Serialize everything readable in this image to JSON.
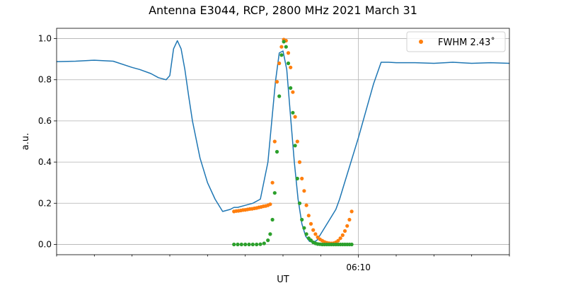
{
  "chart_data": {
    "type": "line",
    "title": "Antenna E3044, RCP, 2800 MHz 2021 March 31",
    "xlabel": "UT",
    "ylabel": "a.u.",
    "xlim": [
      0,
      120
    ],
    "ylim": [
      -0.05,
      1.05
    ],
    "x_tick_positions": [
      0,
      10,
      20,
      30,
      40,
      50,
      60,
      70,
      80,
      90,
      100,
      110,
      120
    ],
    "x_tick_labels": [
      {
        "x": 80,
        "label": "06:10"
      }
    ],
    "y_ticks": [
      0.0,
      0.2,
      0.4,
      0.6,
      0.8,
      1.0
    ],
    "y_tick_labels": [
      "0.0",
      "0.2",
      "0.4",
      "0.6",
      "0.8",
      "1.0"
    ],
    "grid": true,
    "grid_x": [
      80
    ],
    "legend": {
      "placement": "top-right",
      "entries": [
        {
          "label": "FWHM 2.43$^\\circ$",
          "display": "FWHM 2.43˚",
          "color": "#ff7f0e",
          "marker": "dot"
        }
      ]
    },
    "series": [
      {
        "kind": "line",
        "color": "#1f77b4",
        "x": [
          0,
          5,
          10,
          15,
          20,
          22,
          25,
          27,
          29,
          30,
          31,
          32,
          33,
          34,
          35,
          36,
          38,
          40,
          42,
          44,
          46,
          47,
          48,
          50,
          52,
          54,
          56,
          58,
          59,
          60,
          61,
          62,
          63,
          64,
          65,
          66,
          67,
          68,
          69,
          70,
          72,
          74,
          75,
          76,
          78,
          80,
          82,
          84,
          86,
          88,
          90,
          95,
          100,
          105,
          110,
          115,
          120
        ],
        "y": [
          0.888,
          0.89,
          0.895,
          0.89,
          0.86,
          0.85,
          0.83,
          0.81,
          0.8,
          0.82,
          0.95,
          0.99,
          0.95,
          0.85,
          0.72,
          0.6,
          0.42,
          0.3,
          0.22,
          0.16,
          0.17,
          0.18,
          0.18,
          0.19,
          0.2,
          0.22,
          0.4,
          0.79,
          0.93,
          0.94,
          0.85,
          0.62,
          0.4,
          0.22,
          0.1,
          0.04,
          0.015,
          0.01,
          0.02,
          0.05,
          0.11,
          0.17,
          0.22,
          0.28,
          0.4,
          0.52,
          0.65,
          0.78,
          0.885,
          0.885,
          0.883,
          0.883,
          0.88,
          0.885,
          0.88,
          0.883,
          0.88
        ]
      },
      {
        "kind": "scatter",
        "color": "#ff7f0e",
        "x": [
          47,
          47.6,
          48.2,
          48.8,
          49.4,
          50,
          50.6,
          51.2,
          51.8,
          52.4,
          53,
          53.6,
          54.2,
          54.8,
          55.4,
          56,
          56.6,
          57.2,
          57.8,
          58.4,
          59,
          59.6,
          60.2,
          60.8,
          61.4,
          62,
          62.6,
          63.2,
          63.8,
          64.4,
          65,
          65.6,
          66.2,
          66.8,
          67.4,
          68,
          68.6,
          69.2,
          69.8,
          70.4,
          71,
          71.6,
          72.2,
          72.8,
          73.4,
          74,
          74.6,
          75.2,
          75.8,
          76.4,
          77,
          77.6,
          78.2
        ],
        "y": [
          0.16,
          0.162,
          0.163,
          0.165,
          0.167,
          0.168,
          0.17,
          0.172,
          0.173,
          0.175,
          0.177,
          0.18,
          0.182,
          0.185,
          0.187,
          0.19,
          0.195,
          0.3,
          0.5,
          0.79,
          0.88,
          0.96,
          0.995,
          0.99,
          0.93,
          0.86,
          0.74,
          0.62,
          0.5,
          0.4,
          0.32,
          0.26,
          0.19,
          0.14,
          0.1,
          0.07,
          0.05,
          0.035,
          0.025,
          0.018,
          0.012,
          0.008,
          0.006,
          0.005,
          0.006,
          0.01,
          0.018,
          0.03,
          0.045,
          0.065,
          0.09,
          0.12,
          0.16
        ]
      },
      {
        "kind": "scatter",
        "color": "#2ca02c",
        "x": [
          47,
          48,
          49,
          50,
          51,
          52,
          53,
          54,
          55,
          56,
          56.6,
          57.2,
          57.8,
          58.4,
          59,
          59.6,
          60.2,
          60.8,
          61.4,
          62,
          62.6,
          63.2,
          63.8,
          64.4,
          65,
          65.6,
          66.2,
          66.8,
          67.4,
          68,
          68.6,
          69.2,
          69.8,
          70.4,
          71,
          71.6,
          72.2,
          72.8,
          73.4,
          74,
          74.6,
          75.2,
          75.8,
          76.4,
          77,
          77.6,
          78.2
        ],
        "y": [
          0,
          0,
          0,
          0,
          0,
          0,
          0,
          0.001,
          0.005,
          0.02,
          0.05,
          0.12,
          0.25,
          0.45,
          0.72,
          0.92,
          0.985,
          0.96,
          0.88,
          0.76,
          0.64,
          0.48,
          0.32,
          0.2,
          0.12,
          0.08,
          0.05,
          0.03,
          0.02,
          0.01,
          0.005,
          0.002,
          0.001,
          0,
          0,
          0,
          0,
          0,
          0,
          0,
          0,
          0,
          0,
          0,
          0,
          0,
          0
        ]
      }
    ]
  }
}
